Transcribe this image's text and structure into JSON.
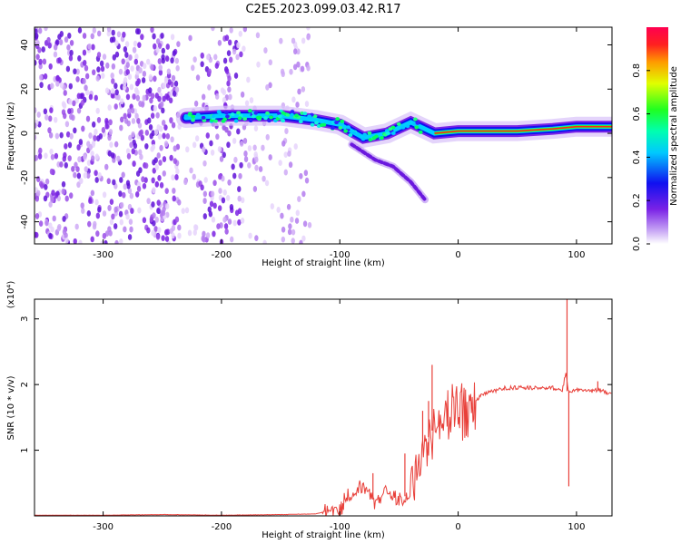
{
  "title": "C2E5.2023.099.03.42.R17",
  "colors": {
    "signal_line": "#e8403a",
    "background": "#ffffff",
    "axis": "#000000"
  },
  "chart_data": [
    {
      "type": "heatmap",
      "xlabel": "Height of straight line (km)",
      "ylabel": "Frequency (Hz)",
      "xlim": [
        -358,
        130
      ],
      "ylim": [
        -50,
        48
      ],
      "xticks": [
        -300,
        -200,
        -100,
        0,
        100
      ],
      "yticks": [
        -40,
        -20,
        0,
        20,
        40
      ],
      "colorbar": {
        "label": "Normalized spectral amplitude",
        "ticks": [
          "0.0",
          "0.2",
          "0.4",
          "0.6",
          "0.8"
        ],
        "range": [
          0,
          1
        ],
        "colormap": "rainbow (white-purple-blue-cyan-green-yellow-red)"
      },
      "main_trace": [
        {
          "x": -230,
          "y": 7
        },
        {
          "x": -200,
          "y": 8
        },
        {
          "x": -150,
          "y": 8
        },
        {
          "x": -120,
          "y": 6
        },
        {
          "x": -100,
          "y": 4
        },
        {
          "x": -80,
          "y": -2
        },
        {
          "x": -60,
          "y": 0
        },
        {
          "x": -40,
          "y": 5
        },
        {
          "x": -20,
          "y": 0
        },
        {
          "x": 0,
          "y": 1
        },
        {
          "x": 50,
          "y": 1
        },
        {
          "x": 80,
          "y": 2
        },
        {
          "x": 100,
          "y": 3
        },
        {
          "x": 130,
          "y": 3
        }
      ],
      "secondary_trace": [
        {
          "x": -90,
          "y": -5
        },
        {
          "x": -70,
          "y": -12
        },
        {
          "x": -55,
          "y": -15
        },
        {
          "x": -40,
          "y": -22
        },
        {
          "x": -28,
          "y": -30
        }
      ]
    },
    {
      "type": "line",
      "xlabel": "Height of straight line (km)",
      "ylabel": "SNR (10 * v/v)",
      "scale_label": "(x10⁴)",
      "xlim": [
        -358,
        130
      ],
      "ylim": [
        0,
        3.3
      ],
      "xticks": [
        -300,
        -200,
        -100,
        0,
        100
      ],
      "yticks": [
        1,
        2,
        3
      ],
      "series": [
        {
          "x": [
            -358,
            -300,
            -250,
            -200,
            -150,
            -120,
            -110,
            -100,
            -90,
            -80,
            -70,
            -60,
            -50,
            -40,
            -35,
            -30,
            -25,
            -20,
            -15,
            -10,
            -5,
            0,
            10,
            20,
            30,
            40,
            60,
            80,
            88,
            91,
            93,
            95,
            100,
            110,
            120,
            130
          ],
          "values": [
            0.01,
            0.01,
            0.02,
            0.01,
            0.02,
            0.03,
            0.08,
            0.15,
            0.3,
            0.5,
            0.25,
            0.35,
            0.2,
            0.3,
            0.8,
            1.1,
            1.2,
            1.3,
            1.4,
            1.5,
            1.6,
            1.55,
            1.65,
            1.85,
            1.9,
            1.95,
            1.95,
            1.95,
            1.9,
            2.2,
            1.9,
            1.9,
            1.92,
            1.9,
            1.92,
            1.85
          ],
          "spikes": [
            {
              "x": -22,
              "y": 2.3
            },
            {
              "x": -30,
              "y": 1.6
            },
            {
              "x": -45,
              "y": 0.95
            },
            {
              "x": -72,
              "y": 0.65
            },
            {
              "x": -25,
              "y": 1.75
            },
            {
              "x": 92,
              "y": 3.3
            },
            {
              "x": 93.5,
              "y": 0.45
            },
            {
              "x": 118,
              "y": 2.05
            }
          ]
        }
      ]
    }
  ]
}
